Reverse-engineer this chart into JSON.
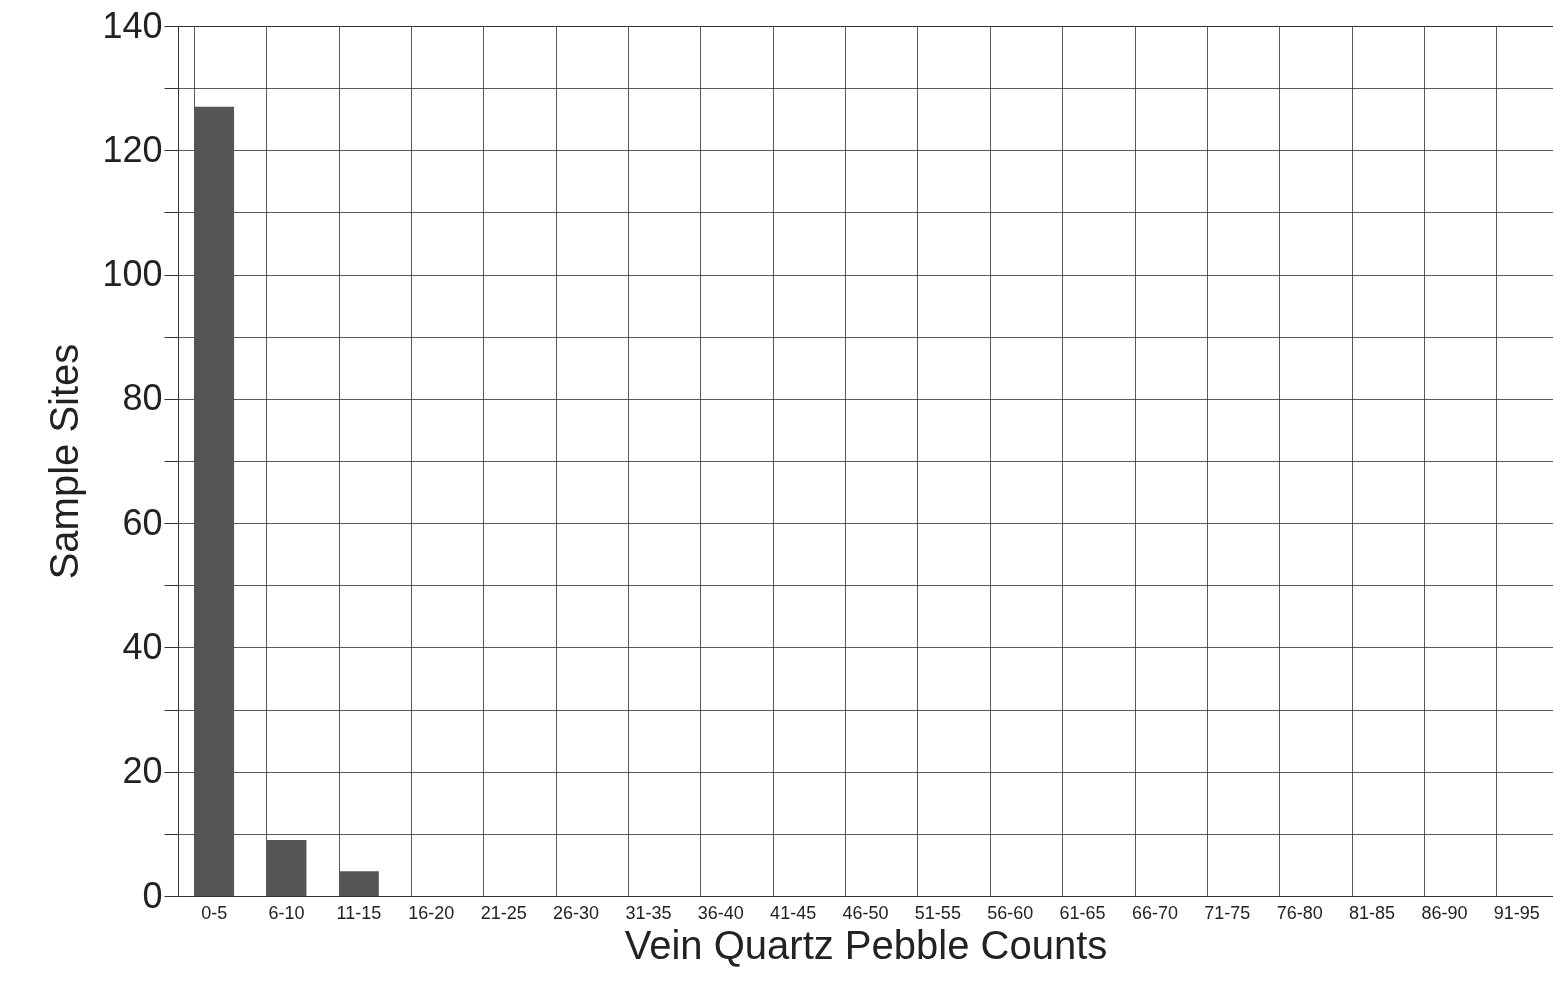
{
  "chart_data": {
    "type": "bar",
    "xlabel": "Vein Quartz Pebble Counts",
    "ylabel": "Sample Sites",
    "categories": [
      "0-5",
      "6-10",
      "11-15",
      "16-20",
      "21-25",
      "26-30",
      "31-35",
      "36-40",
      "41-45",
      "46-50",
      "51-55",
      "56-60",
      "61-65",
      "66-70",
      "71-75",
      "76-80",
      "81-85",
      "86-90",
      "91-95"
    ],
    "values": [
      127,
      9,
      4,
      0,
      0,
      0,
      0,
      0,
      0,
      0,
      0,
      0,
      0,
      0,
      0,
      0,
      0,
      0,
      0
    ],
    "color": "#555555",
    "ylim": [
      0,
      140
    ],
    "yticks": [
      0,
      {
        "value": 10,
        "label": null
      },
      20,
      {
        "value": 30,
        "label": null
      },
      40,
      {
        "value": 50,
        "label": null
      },
      60,
      {
        "value": 70,
        "label": null
      },
      80,
      {
        "value": 90,
        "label": null
      },
      100,
      {
        "value": 110,
        "label": null
      },
      120,
      {
        "value": 130,
        "label": null
      },
      140
    ],
    "grid": true
  }
}
